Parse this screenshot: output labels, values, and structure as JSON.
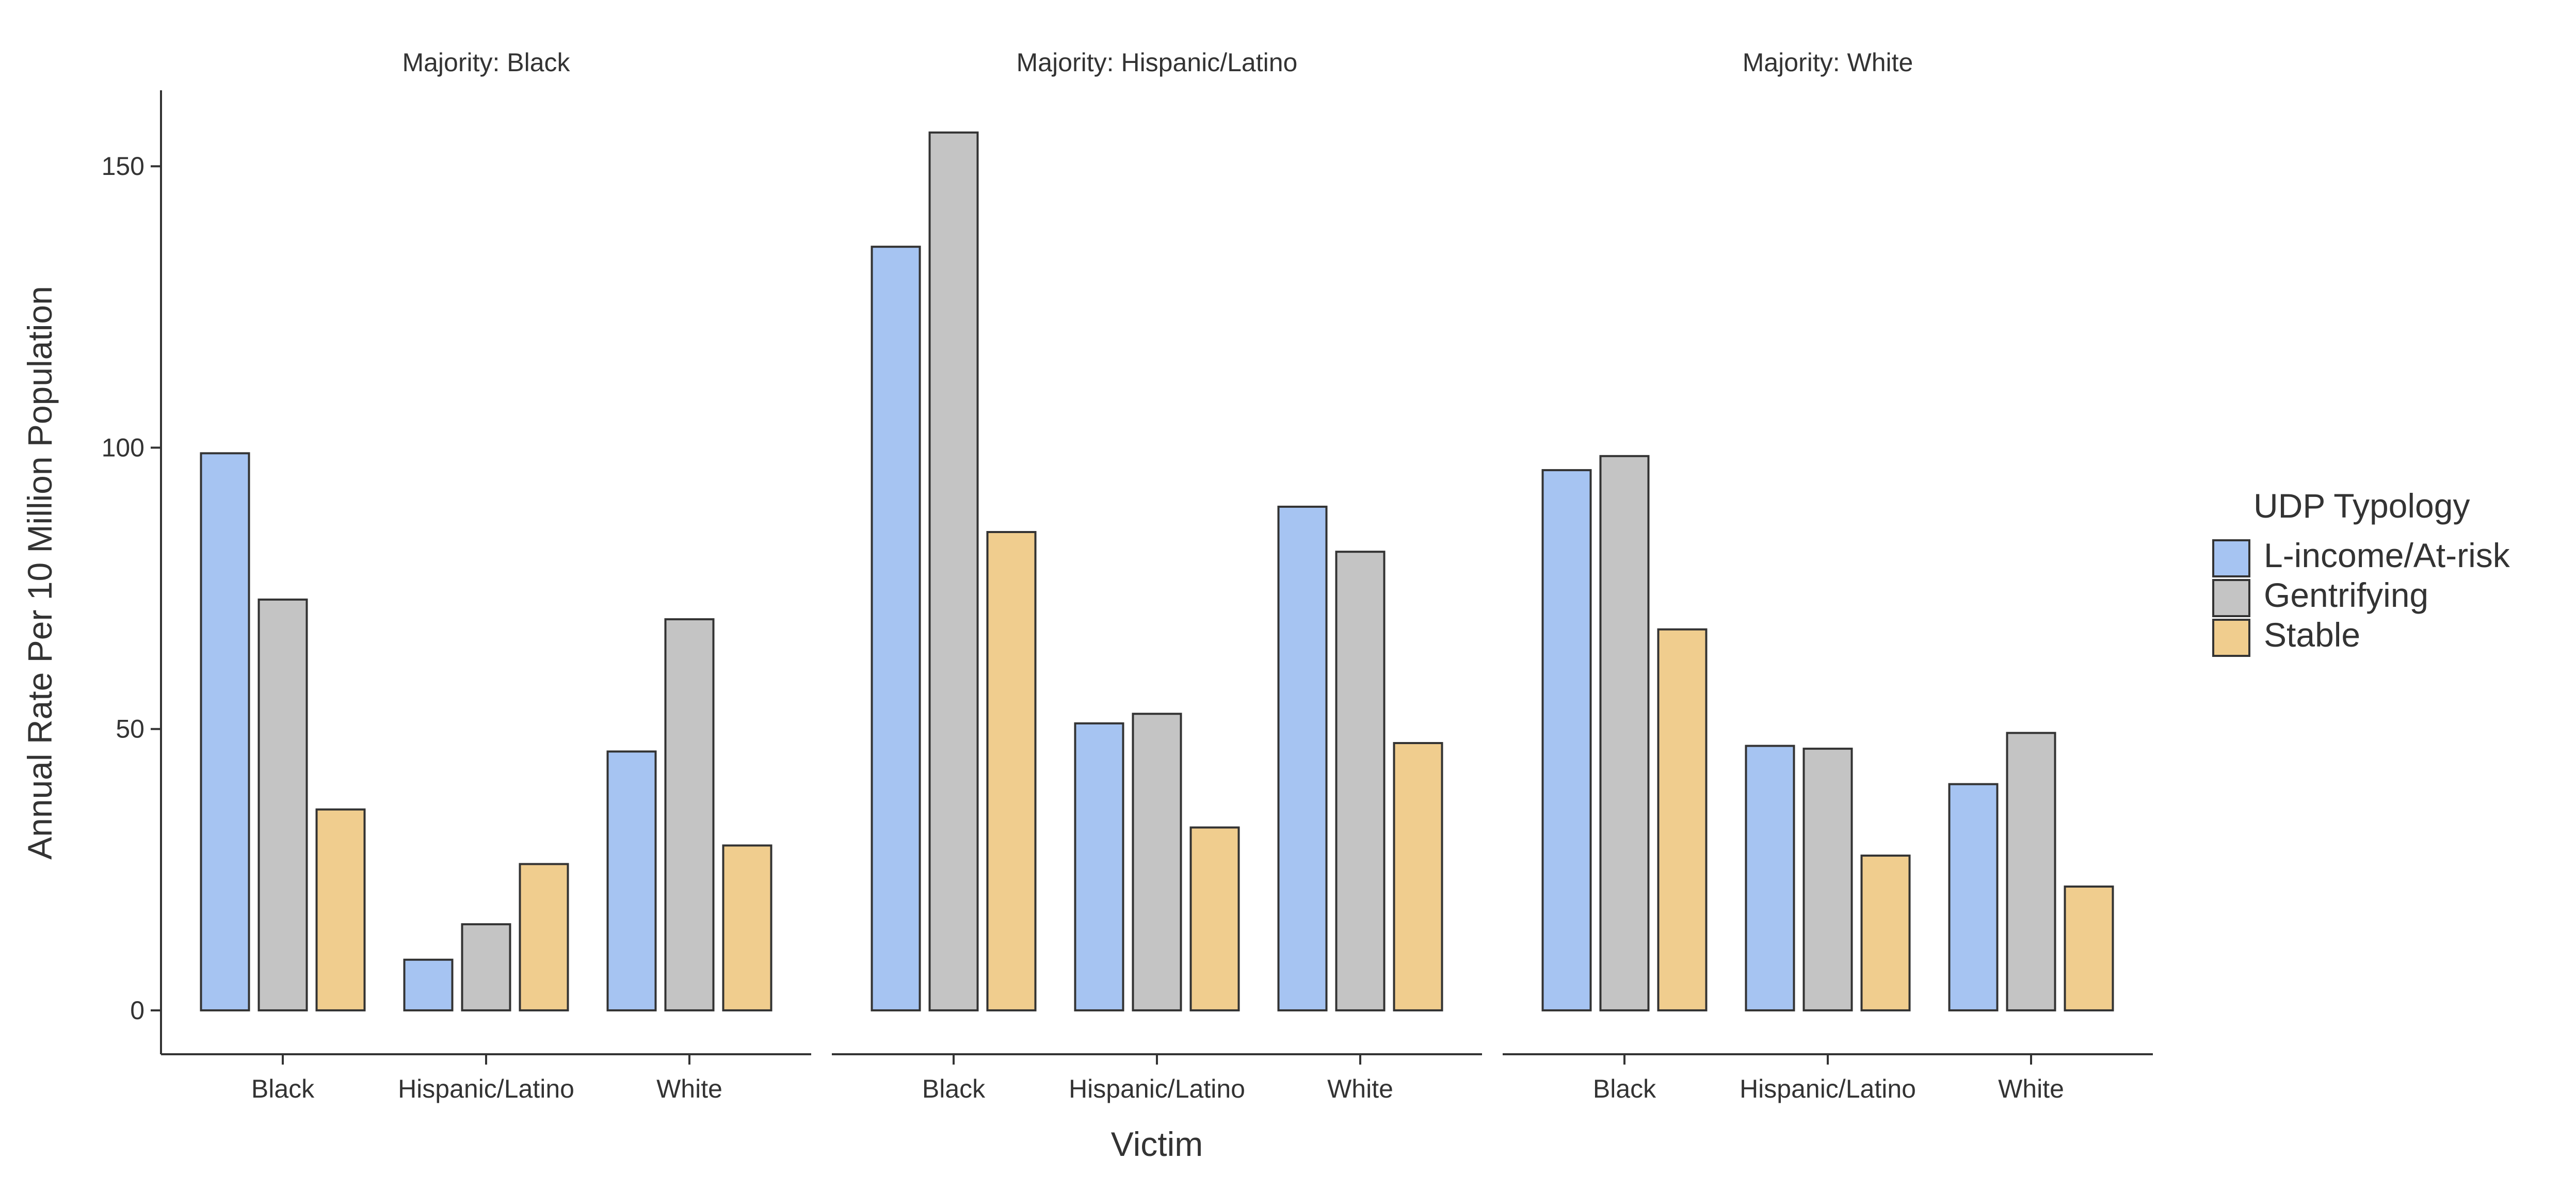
{
  "chart_data": {
    "type": "bar",
    "facet_title_prefix": "Majority: ",
    "facets": [
      {
        "title": "Majority: Black",
        "categories": [
          "Black",
          "Hispanic/Latino",
          "White"
        ],
        "series": [
          {
            "name": "L-income/At-risk",
            "values": [
              99,
              9,
              46
            ]
          },
          {
            "name": "Gentrifying",
            "values": [
              73,
              15.3,
              69.5
            ]
          },
          {
            "name": "Stable",
            "values": [
              35.7,
              26,
              29.3
            ]
          }
        ]
      },
      {
        "title": "Majority: Hispanic/Latino",
        "categories": [
          "Black",
          "Hispanic/Latino",
          "White"
        ],
        "series": [
          {
            "name": "L-income/At-risk",
            "values": [
              135.7,
              51,
              89.5
            ]
          },
          {
            "name": "Gentrifying",
            "values": [
              156,
              52.7,
              81.5
            ]
          },
          {
            "name": "Stable",
            "values": [
              85,
              32.5,
              47.5
            ]
          }
        ]
      },
      {
        "title": "Majority: White",
        "categories": [
          "Black",
          "Hispanic/Latino",
          "White"
        ],
        "series": [
          {
            "name": "L-income/At-risk",
            "values": [
              96,
              47,
              40.2
            ]
          },
          {
            "name": "Gentrifying",
            "values": [
              98.5,
              46.5,
              49.3
            ]
          },
          {
            "name": "Stable",
            "values": [
              67.7,
              27.5,
              22
            ]
          }
        ]
      }
    ],
    "xlabel": "Victim",
    "ylabel": "Annual Rate Per 10 Million Population",
    "ylim": [
      -7.8,
      163.5
    ],
    "yticks": [
      0,
      50,
      100,
      150
    ],
    "grid": false,
    "legend": {
      "title": "UDP Typology",
      "placement": "right",
      "items": [
        "L-income/At-risk",
        "Gentrifying",
        "Stable"
      ]
    },
    "colors": {
      "L-income/At-risk": "#a6c4f2",
      "Gentrifying": "#c4c4c4",
      "Stable": "#f0cd8e",
      "outline": "#333333",
      "axis": "#333333",
      "background": "#ffffff"
    }
  }
}
